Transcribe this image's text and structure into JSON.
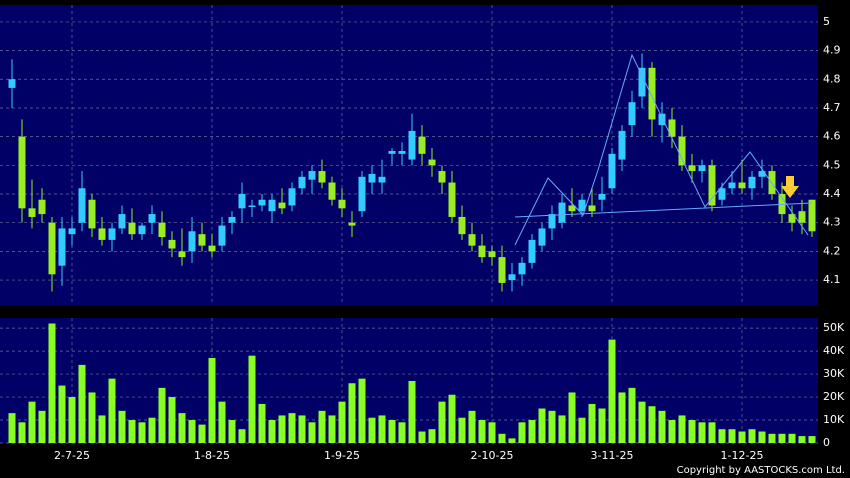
{
  "chart_data": [
    {
      "type": "candlestick",
      "open": [
        4.77,
        4.6,
        4.35,
        4.38,
        4.3,
        4.15,
        4.26,
        4.3,
        4.38,
        4.28,
        4.24,
        4.28,
        4.3,
        4.26,
        4.3,
        4.3,
        4.24,
        4.2,
        4.2,
        4.26,
        4.22,
        4.22,
        4.3,
        4.35,
        4.36,
        4.36,
        4.34,
        4.37,
        4.36,
        4.42,
        4.45,
        4.48,
        4.44,
        4.38,
        4.3,
        4.34,
        4.44,
        4.44,
        4.54,
        4.54,
        4.52,
        4.6,
        4.52,
        4.48,
        4.44,
        4.32,
        4.26,
        4.22,
        4.2,
        4.18,
        4.1,
        4.12,
        4.16,
        4.22,
        4.28,
        4.3,
        4.36,
        4.34,
        4.36,
        4.38,
        4.42,
        4.52,
        4.64,
        4.74,
        4.84,
        4.64,
        4.66,
        4.6,
        4.5,
        4.48,
        4.5,
        4.38,
        4.42,
        4.44,
        4.42,
        4.46,
        4.48,
        4.4,
        4.33,
        4.34,
        4.38
      ],
      "high": [
        4.87,
        4.66,
        4.45,
        4.42,
        4.32,
        4.32,
        4.32,
        4.48,
        4.4,
        4.32,
        4.3,
        4.36,
        4.35,
        4.3,
        4.36,
        4.34,
        4.27,
        4.28,
        4.32,
        4.3,
        4.26,
        4.32,
        4.34,
        4.44,
        4.38,
        4.4,
        4.4,
        4.42,
        4.44,
        4.48,
        4.5,
        4.52,
        4.46,
        4.42,
        4.34,
        4.48,
        4.5,
        4.52,
        4.56,
        4.58,
        4.68,
        4.64,
        4.56,
        4.5,
        4.48,
        4.36,
        4.3,
        4.26,
        4.22,
        4.22,
        4.16,
        4.18,
        4.26,
        4.3,
        4.36,
        4.4,
        4.42,
        4.4,
        4.42,
        4.46,
        4.56,
        4.64,
        4.76,
        4.89,
        4.86,
        4.72,
        4.7,
        4.64,
        4.54,
        4.52,
        4.52,
        4.44,
        4.48,
        4.52,
        4.48,
        4.52,
        4.5,
        4.44,
        4.36,
        4.38,
        4.38
      ],
      "low": [
        4.7,
        4.3,
        4.28,
        4.3,
        4.06,
        4.08,
        4.22,
        4.27,
        4.25,
        4.22,
        4.2,
        4.26,
        4.24,
        4.24,
        4.26,
        4.22,
        4.18,
        4.15,
        4.16,
        4.2,
        4.18,
        4.2,
        4.26,
        4.3,
        4.32,
        4.34,
        4.3,
        4.33,
        4.34,
        4.4,
        4.4,
        4.42,
        4.36,
        4.32,
        4.25,
        4.32,
        4.4,
        4.4,
        4.5,
        4.5,
        4.5,
        4.5,
        4.46,
        4.4,
        4.3,
        4.24,
        4.2,
        4.16,
        4.15,
        4.06,
        4.06,
        4.08,
        4.14,
        4.2,
        4.24,
        4.28,
        4.32,
        4.32,
        4.32,
        4.34,
        4.4,
        4.48,
        4.6,
        4.7,
        4.6,
        4.58,
        4.56,
        4.48,
        4.44,
        4.44,
        4.34,
        4.36,
        4.4,
        4.4,
        4.38,
        4.42,
        4.38,
        4.3,
        4.27,
        4.26,
        4.25
      ],
      "close": [
        4.8,
        4.35,
        4.32,
        4.33,
        4.12,
        4.28,
        4.28,
        4.42,
        4.28,
        4.24,
        4.28,
        4.33,
        4.26,
        4.29,
        4.33,
        4.25,
        4.21,
        4.18,
        4.27,
        4.22,
        4.2,
        4.29,
        4.32,
        4.4,
        4.36,
        4.38,
        4.38,
        4.35,
        4.42,
        4.46,
        4.48,
        4.44,
        4.38,
        4.35,
        4.29,
        4.46,
        4.47,
        4.46,
        4.55,
        4.55,
        4.62,
        4.54,
        4.5,
        4.44,
        4.32,
        4.26,
        4.22,
        4.18,
        4.18,
        4.09,
        4.12,
        4.16,
        4.24,
        4.28,
        4.33,
        4.37,
        4.34,
        4.38,
        4.34,
        4.4,
        4.54,
        4.62,
        4.72,
        4.84,
        4.66,
        4.68,
        4.6,
        4.5,
        4.48,
        4.5,
        4.36,
        4.42,
        4.44,
        4.42,
        4.46,
        4.48,
        4.4,
        4.33,
        4.3,
        4.3,
        4.27
      ],
      "up_color": "#33ccff",
      "down_color": "#99ee22",
      "ylim": [
        4.013,
        5.059
      ],
      "yticks": [
        4.1,
        4.2,
        4.3,
        4.4,
        4.5,
        4.6,
        4.7,
        4.8,
        4.9,
        5
      ],
      "grid": true
    },
    {
      "type": "bar",
      "categories": [
        null,
        null,
        null,
        null,
        null,
        null,
        "2-7-25",
        null,
        null,
        null,
        null,
        null,
        null,
        null,
        null,
        null,
        null,
        null,
        null,
        null,
        "1-8-25",
        null,
        null,
        null,
        null,
        null,
        null,
        null,
        null,
        null,
        null,
        null,
        null,
        "1-9-25",
        null,
        null,
        null,
        null,
        null,
        null,
        null,
        null,
        null,
        null,
        null,
        null,
        null,
        null,
        "2-10-25",
        null,
        null,
        null,
        null,
        null,
        null,
        null,
        null,
        null,
        null,
        null,
        "3-11-25",
        null,
        null,
        null,
        null,
        null,
        null,
        null,
        null,
        null,
        null,
        null,
        null,
        "1-12-25",
        null,
        null,
        null,
        null,
        null,
        null,
        null
      ],
      "values": [
        13000,
        9000,
        18000,
        14000,
        52000,
        25000,
        20000,
        34000,
        22000,
        12000,
        28000,
        14000,
        10000,
        9000,
        11000,
        24000,
        20000,
        13000,
        10000,
        8000,
        37000,
        18000,
        10000,
        6000,
        38000,
        17000,
        10000,
        12000,
        13000,
        12000,
        9000,
        14000,
        12000,
        18000,
        26000,
        28000,
        11000,
        12000,
        10000,
        9000,
        27000,
        5000,
        6000,
        18000,
        21000,
        11000,
        14000,
        10000,
        9000,
        4000,
        2000,
        9000,
        10000,
        15000,
        14000,
        12000,
        22000,
        11000,
        17000,
        15000,
        45000,
        22000,
        24000,
        18000,
        16000,
        14000,
        10000,
        12000,
        10000,
        9000,
        9000,
        6000,
        6000,
        5000,
        6000,
        5000,
        4000,
        4000,
        4000,
        3000,
        3000
      ],
      "color": "#88ff22",
      "ylim": [
        0,
        54400
      ],
      "yticks": [
        0,
        {
          "value": 10000,
          "label": "10K"
        },
        {
          "value": 20000,
          "label": "20K"
        },
        {
          "value": 30000,
          "label": "30K"
        },
        {
          "value": 40000,
          "label": "40K"
        },
        {
          "value": 50000,
          "label": "50K"
        }
      ],
      "grid": true
    }
  ],
  "copyright": "Copyright by AASTOCKS.com Ltd."
}
